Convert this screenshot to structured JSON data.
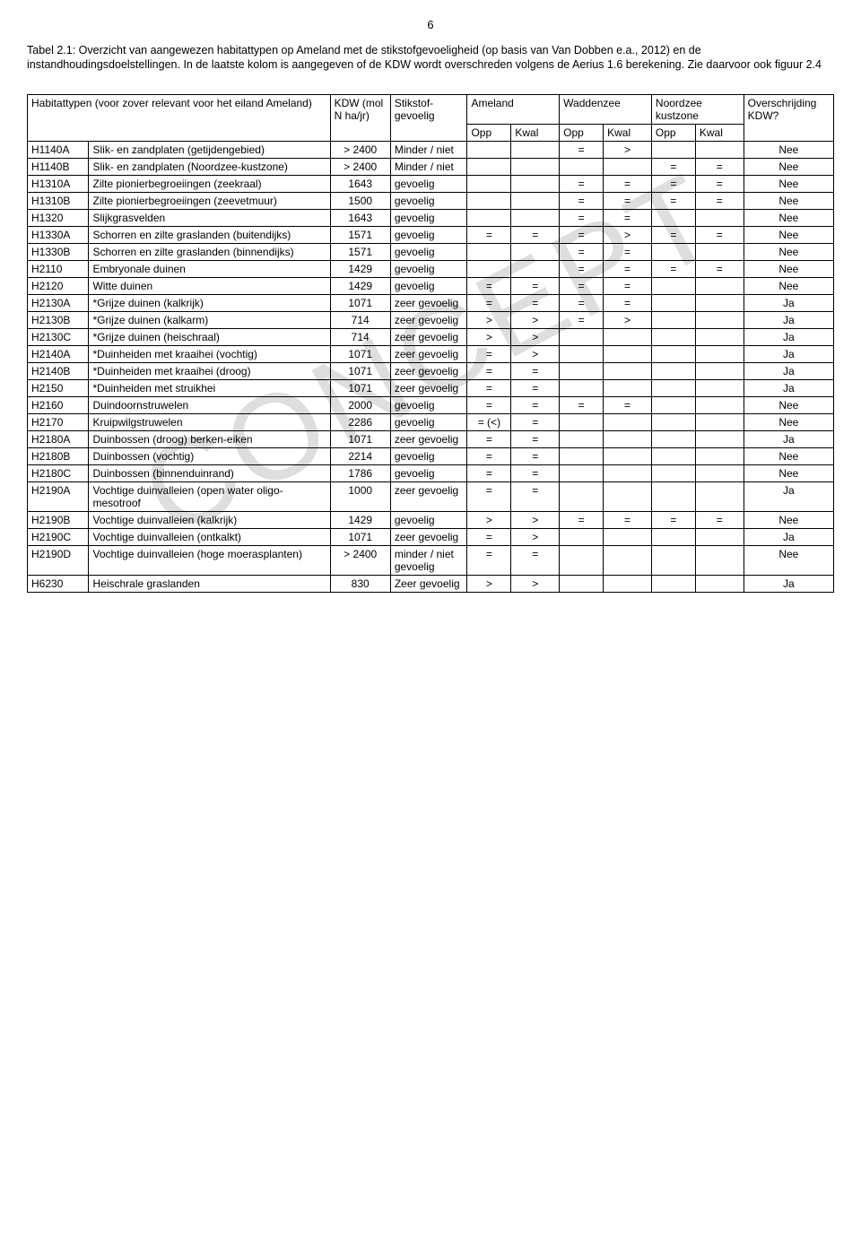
{
  "page_number": "6",
  "caption": "Tabel 2.1: Overzicht van aangewezen habitattypen op Ameland met de stikstofgevoeligheid (op basis van Van Dobben e.a., 2012) en de instandhoudingsdoelstellingen. In de laatste kolom is aangegeven of de KDW wordt overschreden volgens de Aerius 1.6 berekening. Zie daarvoor ook figuur 2.4",
  "watermark": "CONCEPT",
  "headers": {
    "hab_label": "Habitattypen (voor zover relevant voor het eiland Ameland)",
    "kdw_label": "KDW (mol N ha/jr)",
    "sens_label": "Stikstof-gevoelig",
    "ameland": "Ameland",
    "waddenzee": "Waddenzee",
    "noordzee": "Noordzee kustzone",
    "over": "Overschrijding KDW?",
    "opp": "Opp",
    "kwal": "Kwal"
  },
  "rows": [
    {
      "code": "H1140A",
      "name": "Slik- en zandplaten (getijdengebied)",
      "kdw": "> 2400",
      "sens": "Minder / niet",
      "a_opp": "",
      "a_kwal": "",
      "w_opp": "=",
      "w_kwal": ">",
      "n_opp": "",
      "n_kwal": "",
      "over": "Nee"
    },
    {
      "code": "H1140B",
      "name": "Slik- en zandplaten (Noordzee-kustzone)",
      "kdw": "> 2400",
      "sens": "Minder / niet",
      "a_opp": "",
      "a_kwal": "",
      "w_opp": "",
      "w_kwal": "",
      "n_opp": "=",
      "n_kwal": "=",
      "over": "Nee"
    },
    {
      "code": "H1310A",
      "name": "Zilte pionierbegroeiingen (zeekraal)",
      "kdw": "1643",
      "sens": "gevoelig",
      "a_opp": "",
      "a_kwal": "",
      "w_opp": "=",
      "w_kwal": "=",
      "n_opp": "=",
      "n_kwal": "=",
      "over": "Nee"
    },
    {
      "code": "H1310B",
      "name": "Zilte pionierbegroeiingen (zeevetmuur)",
      "kdw": "1500",
      "sens": "gevoelig",
      "a_opp": "",
      "a_kwal": "",
      "w_opp": "=",
      "w_kwal": "=",
      "n_opp": "=",
      "n_kwal": "=",
      "over": "Nee"
    },
    {
      "code": "H1320",
      "name": "Slijkgrasvelden",
      "kdw": "1643",
      "sens": "gevoelig",
      "a_opp": "",
      "a_kwal": "",
      "w_opp": "=",
      "w_kwal": "=",
      "n_opp": "",
      "n_kwal": "",
      "over": "Nee"
    },
    {
      "code": "H1330A",
      "name": "Schorren en zilte graslanden (buitendijks)",
      "kdw": "1571",
      "sens": "gevoelig",
      "a_opp": "=",
      "a_kwal": "=",
      "w_opp": "=",
      "w_kwal": ">",
      "n_opp": "=",
      "n_kwal": "=",
      "over": "Nee"
    },
    {
      "code": "H1330B",
      "name": "Schorren en zilte graslanden (binnendijks)",
      "kdw": "1571",
      "sens": "gevoelig",
      "a_opp": "",
      "a_kwal": "",
      "w_opp": "=",
      "w_kwal": "=",
      "n_opp": "",
      "n_kwal": "",
      "over": "Nee"
    },
    {
      "code": "H2110",
      "name": "Embryonale duinen",
      "kdw": "1429",
      "sens": "gevoelig",
      "a_opp": "",
      "a_kwal": "",
      "w_opp": "=",
      "w_kwal": "=",
      "n_opp": "=",
      "n_kwal": "=",
      "over": "Nee"
    },
    {
      "code": "H2120",
      "name": "Witte duinen",
      "kdw": "1429",
      "sens": "gevoelig",
      "a_opp": "=",
      "a_kwal": "=",
      "w_opp": "=",
      "w_kwal": "=",
      "n_opp": "",
      "n_kwal": "",
      "over": "Nee"
    },
    {
      "code": "H2130A",
      "name": "*Grijze duinen (kalkrijk)",
      "kdw": "1071",
      "sens": "zeer gevoelig",
      "a_opp": "=",
      "a_kwal": "=",
      "w_opp": "=",
      "w_kwal": "=",
      "n_opp": "",
      "n_kwal": "",
      "over": "Ja"
    },
    {
      "code": "H2130B",
      "name": "*Grijze duinen (kalkarm)",
      "kdw": "714",
      "sens": "zeer gevoelig",
      "a_opp": ">",
      "a_kwal": ">",
      "w_opp": "=",
      "w_kwal": ">",
      "n_opp": "",
      "n_kwal": "",
      "over": "Ja"
    },
    {
      "code": "H2130C",
      "name": "*Grijze duinen (heischraal)",
      "kdw": "714",
      "sens": "zeer gevoelig",
      "a_opp": ">",
      "a_kwal": ">",
      "w_opp": "",
      "w_kwal": "",
      "n_opp": "",
      "n_kwal": "",
      "over": "Ja"
    },
    {
      "code": "H2140A",
      "name": "*Duinheiden met kraaihei (vochtig)",
      "kdw": "1071",
      "sens": "zeer gevoelig",
      "a_opp": "=",
      "a_kwal": ">",
      "w_opp": "",
      "w_kwal": "",
      "n_opp": "",
      "n_kwal": "",
      "over": "Ja"
    },
    {
      "code": "H2140B",
      "name": "*Duinheiden met kraaihei (droog)",
      "kdw": "1071",
      "sens": "zeer gevoelig",
      "a_opp": "=",
      "a_kwal": "=",
      "w_opp": "",
      "w_kwal": "",
      "n_opp": "",
      "n_kwal": "",
      "over": "Ja"
    },
    {
      "code": "H2150",
      "name": "*Duinheiden met struikhei",
      "kdw": "1071",
      "sens": "zeer gevoelig",
      "a_opp": "=",
      "a_kwal": "=",
      "w_opp": "",
      "w_kwal": "",
      "n_opp": "",
      "n_kwal": "",
      "over": "Ja"
    },
    {
      "code": "H2160",
      "name": "Duindoornstruwelen",
      "kdw": "2000",
      "sens": "gevoelig",
      "a_opp": "=",
      "a_kwal": "=",
      "w_opp": "=",
      "w_kwal": "=",
      "n_opp": "",
      "n_kwal": "",
      "over": "Nee"
    },
    {
      "code": "H2170",
      "name": "Kruipwilgstruwelen",
      "kdw": "2286",
      "sens": "gevoelig",
      "a_opp": "= (<)",
      "a_kwal": "=",
      "w_opp": "",
      "w_kwal": "",
      "n_opp": "",
      "n_kwal": "",
      "over": "Nee"
    },
    {
      "code": "H2180A",
      "name": "Duinbossen (droog) berken-eiken",
      "kdw": "1071",
      "sens": "zeer gevoelig",
      "a_opp": "=",
      "a_kwal": "=",
      "w_opp": "",
      "w_kwal": "",
      "n_opp": "",
      "n_kwal": "",
      "over": "Ja"
    },
    {
      "code": "H2180B",
      "name": "Duinbossen (vochtig)",
      "kdw": "2214",
      "sens": "gevoelig",
      "a_opp": "=",
      "a_kwal": "=",
      "w_opp": "",
      "w_kwal": "",
      "n_opp": "",
      "n_kwal": "",
      "over": "Nee"
    },
    {
      "code": "H2180C",
      "name": "Duinbossen (binnenduinrand)",
      "kdw": "1786",
      "sens": "gevoelig",
      "a_opp": "=",
      "a_kwal": "=",
      "w_opp": "",
      "w_kwal": "",
      "n_opp": "",
      "n_kwal": "",
      "over": "Nee"
    },
    {
      "code": "H2190A",
      "name": "Vochtige duinvalleien (open water oligo-mesotroof",
      "kdw": "1000",
      "sens": "zeer gevoelig",
      "a_opp": "=",
      "a_kwal": "=",
      "w_opp": "",
      "w_kwal": "",
      "n_opp": "",
      "n_kwal": "",
      "over": "Ja"
    },
    {
      "code": "H2190B",
      "name": "Vochtige duinvalleien (kalkrijk)",
      "kdw": "1429",
      "sens": "gevoelig",
      "a_opp": ">",
      "a_kwal": ">",
      "w_opp": "=",
      "w_kwal": "=",
      "n_opp": "=",
      "n_kwal": "=",
      "over": "Nee"
    },
    {
      "code": "H2190C",
      "name": "Vochtige duinvalleien (ontkalkt)",
      "kdw": "1071",
      "sens": "zeer gevoelig",
      "a_opp": "=",
      "a_kwal": ">",
      "w_opp": "",
      "w_kwal": "",
      "n_opp": "",
      "n_kwal": "",
      "over": "Ja"
    },
    {
      "code": "H2190D",
      "name": "Vochtige duinvalleien (hoge moerasplanten)",
      "kdw": "> 2400",
      "sens": "minder / niet gevoelig",
      "a_opp": "=",
      "a_kwal": "=",
      "w_opp": "",
      "w_kwal": "",
      "n_opp": "",
      "n_kwal": "",
      "over": "Nee"
    },
    {
      "code": "H6230",
      "name": "Heischrale graslanden",
      "kdw": "830",
      "sens": "Zeer gevoelig",
      "a_opp": ">",
      "a_kwal": ">",
      "w_opp": "",
      "w_kwal": "",
      "n_opp": "",
      "n_kwal": "",
      "over": "Ja"
    }
  ]
}
